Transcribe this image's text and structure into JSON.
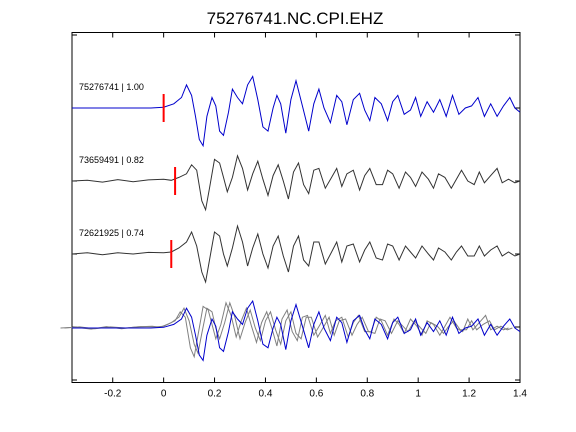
{
  "chart_data": {
    "type": "line",
    "title": "75276741.NC.CPI.EHZ",
    "xlabel": "",
    "ylabel": "",
    "xlim": [
      -0.36,
      1.4
    ],
    "x_ticks": [
      -0.2,
      0,
      0.2,
      0.4,
      0.6,
      0.8,
      1,
      1.2,
      1.4
    ],
    "x_tick_labels": [
      "-0.2",
      "0",
      "0.2",
      "0.4",
      "0.6",
      "0.8",
      "1",
      "1.2",
      "1.4"
    ],
    "grid": false,
    "colors": {
      "reference": "#0000cc",
      "trace": "#333333",
      "overlay": "#808080",
      "pick": "#ff0000"
    },
    "traces": [
      {
        "label": "75276741 | 1.00",
        "pick_time": 0.0,
        "color": "#0000cc",
        "t": [
          -0.36,
          -0.2,
          -0.05,
          0.0,
          0.04,
          0.07,
          0.09,
          0.11,
          0.125,
          0.14,
          0.155,
          0.17,
          0.19,
          0.205,
          0.22,
          0.235,
          0.255,
          0.27,
          0.29,
          0.31,
          0.33,
          0.35,
          0.37,
          0.39,
          0.41,
          0.43,
          0.445,
          0.46,
          0.48,
          0.5,
          0.52,
          0.545,
          0.57,
          0.59,
          0.61,
          0.63,
          0.655,
          0.68,
          0.7,
          0.72,
          0.745,
          0.77,
          0.79,
          0.81,
          0.83,
          0.855,
          0.88,
          0.9,
          0.92,
          0.945,
          0.97,
          0.99,
          1.01,
          1.035,
          1.06,
          1.085,
          1.11,
          1.135,
          1.16,
          1.185,
          1.21,
          1.235,
          1.26,
          1.285,
          1.31,
          1.335,
          1.36,
          1.38,
          1.4
        ],
        "y": [
          0.0,
          0.0,
          0.0,
          0.02,
          0.1,
          0.25,
          0.55,
          0.3,
          -0.2,
          -0.75,
          -0.9,
          -0.2,
          0.25,
          0.05,
          -0.55,
          -0.65,
          -0.1,
          0.45,
          0.25,
          0.1,
          0.55,
          0.75,
          0.2,
          -0.45,
          -0.55,
          0.0,
          0.3,
          0.1,
          -0.6,
          0.2,
          0.65,
          0.05,
          -0.55,
          0.1,
          0.45,
          0.0,
          -0.35,
          0.3,
          0.15,
          -0.4,
          0.2,
          0.35,
          -0.05,
          -0.3,
          0.25,
          0.1,
          -0.3,
          0.15,
          0.3,
          -0.15,
          -0.05,
          0.25,
          -0.2,
          0.15,
          -0.1,
          0.2,
          -0.2,
          0.3,
          -0.15,
          0.0,
          0.05,
          0.25,
          -0.2,
          0.1,
          -0.2,
          0.05,
          0.25,
          0.0,
          -0.1
        ]
      },
      {
        "label": "73659491 | 0.82",
        "pick_time": 0.045,
        "color": "#333333",
        "t": [
          -0.36,
          -0.3,
          -0.24,
          -0.18,
          -0.12,
          -0.06,
          0.0,
          0.03,
          0.06,
          0.09,
          0.11,
          0.13,
          0.15,
          0.165,
          0.18,
          0.2,
          0.22,
          0.235,
          0.25,
          0.27,
          0.29,
          0.31,
          0.33,
          0.35,
          0.37,
          0.39,
          0.41,
          0.43,
          0.45,
          0.47,
          0.49,
          0.51,
          0.53,
          0.55,
          0.57,
          0.59,
          0.61,
          0.635,
          0.66,
          0.68,
          0.7,
          0.72,
          0.745,
          0.77,
          0.79,
          0.81,
          0.835,
          0.86,
          0.88,
          0.9,
          0.925,
          0.95,
          0.97,
          0.99,
          1.015,
          1.04,
          1.06,
          1.08,
          1.105,
          1.13,
          1.15,
          1.17,
          1.195,
          1.22,
          1.24,
          1.26,
          1.285,
          1.31,
          1.33,
          1.355,
          1.38,
          1.4
        ],
        "y": [
          0.0,
          0.02,
          -0.03,
          0.04,
          -0.02,
          0.03,
          0.05,
          0.02,
          0.1,
          0.2,
          0.45,
          0.3,
          -0.55,
          -0.8,
          -0.2,
          0.6,
          0.5,
          0.1,
          -0.3,
          0.1,
          0.7,
          0.35,
          -0.25,
          0.2,
          0.55,
          0.05,
          -0.4,
          0.15,
          0.45,
          0.0,
          -0.5,
          0.25,
          0.5,
          -0.1,
          -0.35,
          0.3,
          0.35,
          -0.2,
          0.1,
          0.35,
          -0.15,
          0.2,
          0.3,
          -0.25,
          0.15,
          0.35,
          -0.1,
          -0.1,
          0.3,
          0.2,
          -0.2,
          0.25,
          0.1,
          -0.15,
          0.25,
          0.05,
          -0.2,
          0.2,
          0.1,
          -0.2,
          0.05,
          0.3,
          0.0,
          -0.1,
          0.25,
          -0.05,
          0.15,
          0.35,
          -0.05,
          0.05,
          -0.05,
          0.0
        ]
      },
      {
        "label": "72621925 | 0.74",
        "pick_time": 0.03,
        "color": "#333333",
        "t": [
          -0.36,
          -0.3,
          -0.24,
          -0.18,
          -0.12,
          -0.06,
          0.0,
          0.03,
          0.06,
          0.09,
          0.11,
          0.13,
          0.15,
          0.165,
          0.18,
          0.2,
          0.22,
          0.235,
          0.25,
          0.27,
          0.29,
          0.31,
          0.33,
          0.35,
          0.37,
          0.39,
          0.41,
          0.43,
          0.45,
          0.47,
          0.49,
          0.51,
          0.53,
          0.55,
          0.57,
          0.59,
          0.61,
          0.635,
          0.66,
          0.68,
          0.7,
          0.72,
          0.745,
          0.77,
          0.79,
          0.81,
          0.835,
          0.86,
          0.88,
          0.9,
          0.925,
          0.95,
          0.97,
          0.99,
          1.015,
          1.04,
          1.06,
          1.08,
          1.105,
          1.13,
          1.15,
          1.17,
          1.195,
          1.22,
          1.24,
          1.26,
          1.285,
          1.31,
          1.33,
          1.355,
          1.38,
          1.4
        ],
        "y": [
          0.0,
          0.03,
          -0.02,
          0.03,
          0.0,
          0.04,
          0.03,
          0.05,
          0.15,
          0.3,
          0.55,
          0.2,
          -0.45,
          -0.7,
          -0.15,
          0.55,
          0.45,
          0.0,
          -0.3,
          0.15,
          0.7,
          0.3,
          -0.3,
          0.15,
          0.5,
          0.0,
          -0.35,
          0.2,
          0.45,
          -0.05,
          -0.45,
          0.2,
          0.45,
          -0.15,
          -0.3,
          0.3,
          0.3,
          -0.25,
          0.05,
          0.3,
          -0.2,
          0.2,
          0.25,
          -0.2,
          0.1,
          0.3,
          -0.1,
          -0.15,
          0.25,
          0.2,
          -0.15,
          0.2,
          0.05,
          -0.1,
          0.2,
          0.0,
          -0.15,
          0.15,
          0.05,
          -0.15,
          0.05,
          0.2,
          -0.05,
          -0.05,
          0.2,
          -0.05,
          0.1,
          0.2,
          -0.05,
          0.05,
          -0.05,
          0.0
        ]
      }
    ]
  }
}
